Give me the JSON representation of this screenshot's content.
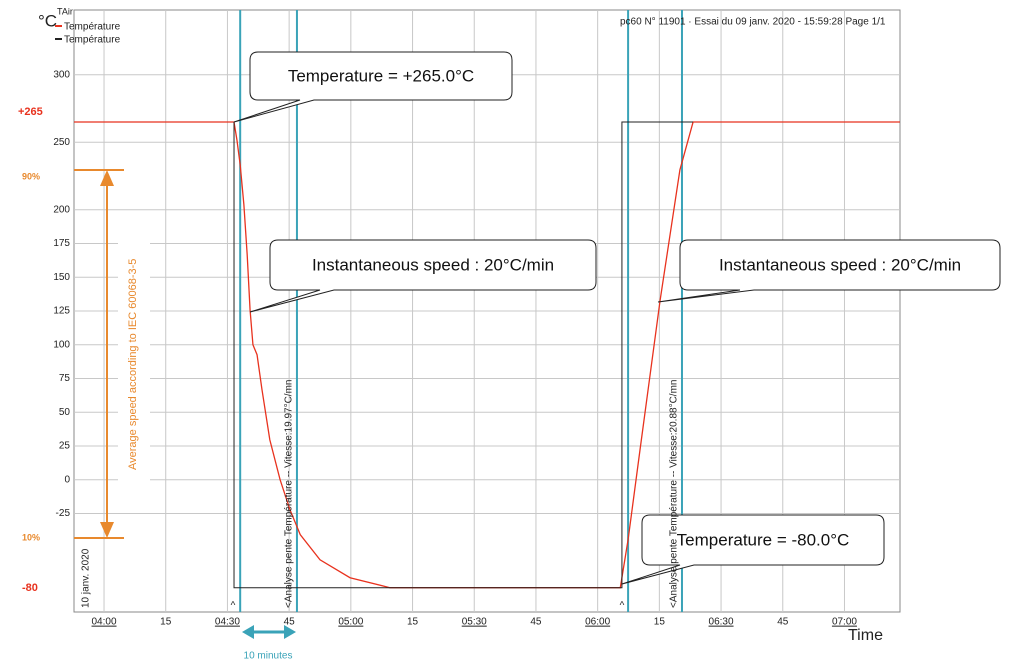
{
  "chart_data": {
    "type": "line",
    "header": "pc60 N° 11901 · Essai du 09 janv. 2020 - 15:59:28  Page 1/1",
    "unit_label": "°C",
    "x_label": "Time",
    "legend_title": "TAir",
    "date_label": "10 janv. 2020",
    "xlim": [
      232.7,
      433.5
    ],
    "ylim": [
      -98,
      348
    ],
    "xticks": [
      {
        "value": 240,
        "label": "04:00"
      },
      {
        "value": 255,
        "label": "15"
      },
      {
        "value": 270,
        "label": "04:30"
      },
      {
        "value": 285,
        "label": "45"
      },
      {
        "value": 300,
        "label": "05:00"
      },
      {
        "value": 315,
        "label": "15"
      },
      {
        "value": 330,
        "label": "05:30"
      },
      {
        "value": 345,
        "label": "45"
      },
      {
        "value": 360,
        "label": "06:00"
      },
      {
        "value": 375,
        "label": "15"
      },
      {
        "value": 390,
        "label": "06:30"
      },
      {
        "value": 405,
        "label": "45"
      },
      {
        "value": 420,
        "label": "07:00"
      }
    ],
    "yticks": [
      300,
      250,
      200,
      175,
      150,
      125,
      100,
      75,
      50,
      25,
      0,
      -25
    ],
    "grid": true,
    "series": [
      {
        "name": "Température",
        "color": "#e8321e",
        "x": [
          232.7,
          271.6,
          272.3,
          273.1,
          274.0,
          274.8,
          275.5,
          276.2,
          277.2,
          278.4,
          280.3,
          282.8,
          285.2,
          287.7,
          292.5,
          299.8,
          309.5,
          365.5,
          367.4,
          370.3,
          375.2,
          380.0,
          383.2,
          433.5
        ],
        "values": [
          265,
          265,
          251.9,
          233.3,
          203.7,
          166.7,
          125.9,
          100,
          92.6,
          66.7,
          29.6,
          0,
          -22.2,
          -40.7,
          -59.3,
          -72.6,
          -80,
          -80,
          -44.4,
          22.2,
          133.3,
          229.6,
          265,
          265
        ]
      },
      {
        "name": "Température",
        "color": "#222222",
        "x": [
          271.6,
          271.6,
          365.9,
          365.9,
          383.2
        ],
        "values": [
          265,
          -80,
          -80,
          265,
          265
        ]
      }
    ],
    "cursors": {
      "color": "#3aa3b8",
      "x": [
        273.1,
        286.9,
        367.4,
        380.5
      ],
      "labels": [
        "<Analyse pente Température -- Vitesse:19.97°C/mn",
        "<Analyse pente Température -- Vitesse:20.88°C/mn"
      ]
    },
    "annotations": [
      "Temperature = +265.0°C",
      "Instantaneous speed : 20°C/min",
      "Instantaneous speed : 20°C/min",
      "Temperature = -80.0°C"
    ],
    "side_labels": {
      "high": "+265",
      "low": "-80",
      "p90": "90%",
      "p10": "10%",
      "average": "Average speed according to IEC 60068-3-5",
      "duration": "10 minutes",
      "marker": "^"
    }
  }
}
